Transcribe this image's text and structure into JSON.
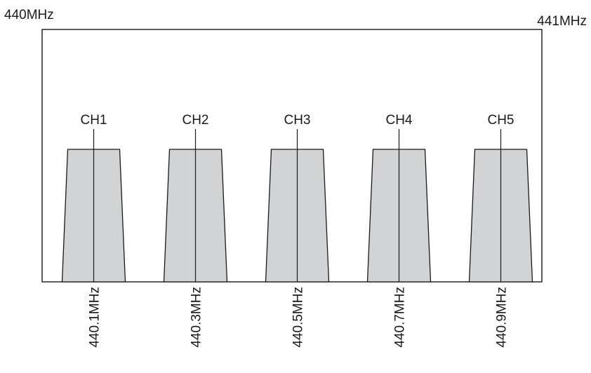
{
  "band": {
    "start_label": "440MHz",
    "end_label": "441MHz",
    "start_mhz": 440.0,
    "end_mhz": 441.0
  },
  "channels": [
    {
      "name": "CH1",
      "freq_label": "440.1MHz",
      "freq_mhz": 440.1
    },
    {
      "name": "CH2",
      "freq_label": "440.3MHz",
      "freq_mhz": 440.3
    },
    {
      "name": "CH3",
      "freq_label": "440.5MHz",
      "freq_mhz": 440.5
    },
    {
      "name": "CH4",
      "freq_label": "440.7MHz",
      "freq_mhz": 440.7
    },
    {
      "name": "CH5",
      "freq_label": "440.9MHz",
      "freq_mhz": 440.9
    }
  ],
  "colors": {
    "channel_fill": "#d2d3d5",
    "outline": "#1a1a1a",
    "background": "#ffffff"
  }
}
